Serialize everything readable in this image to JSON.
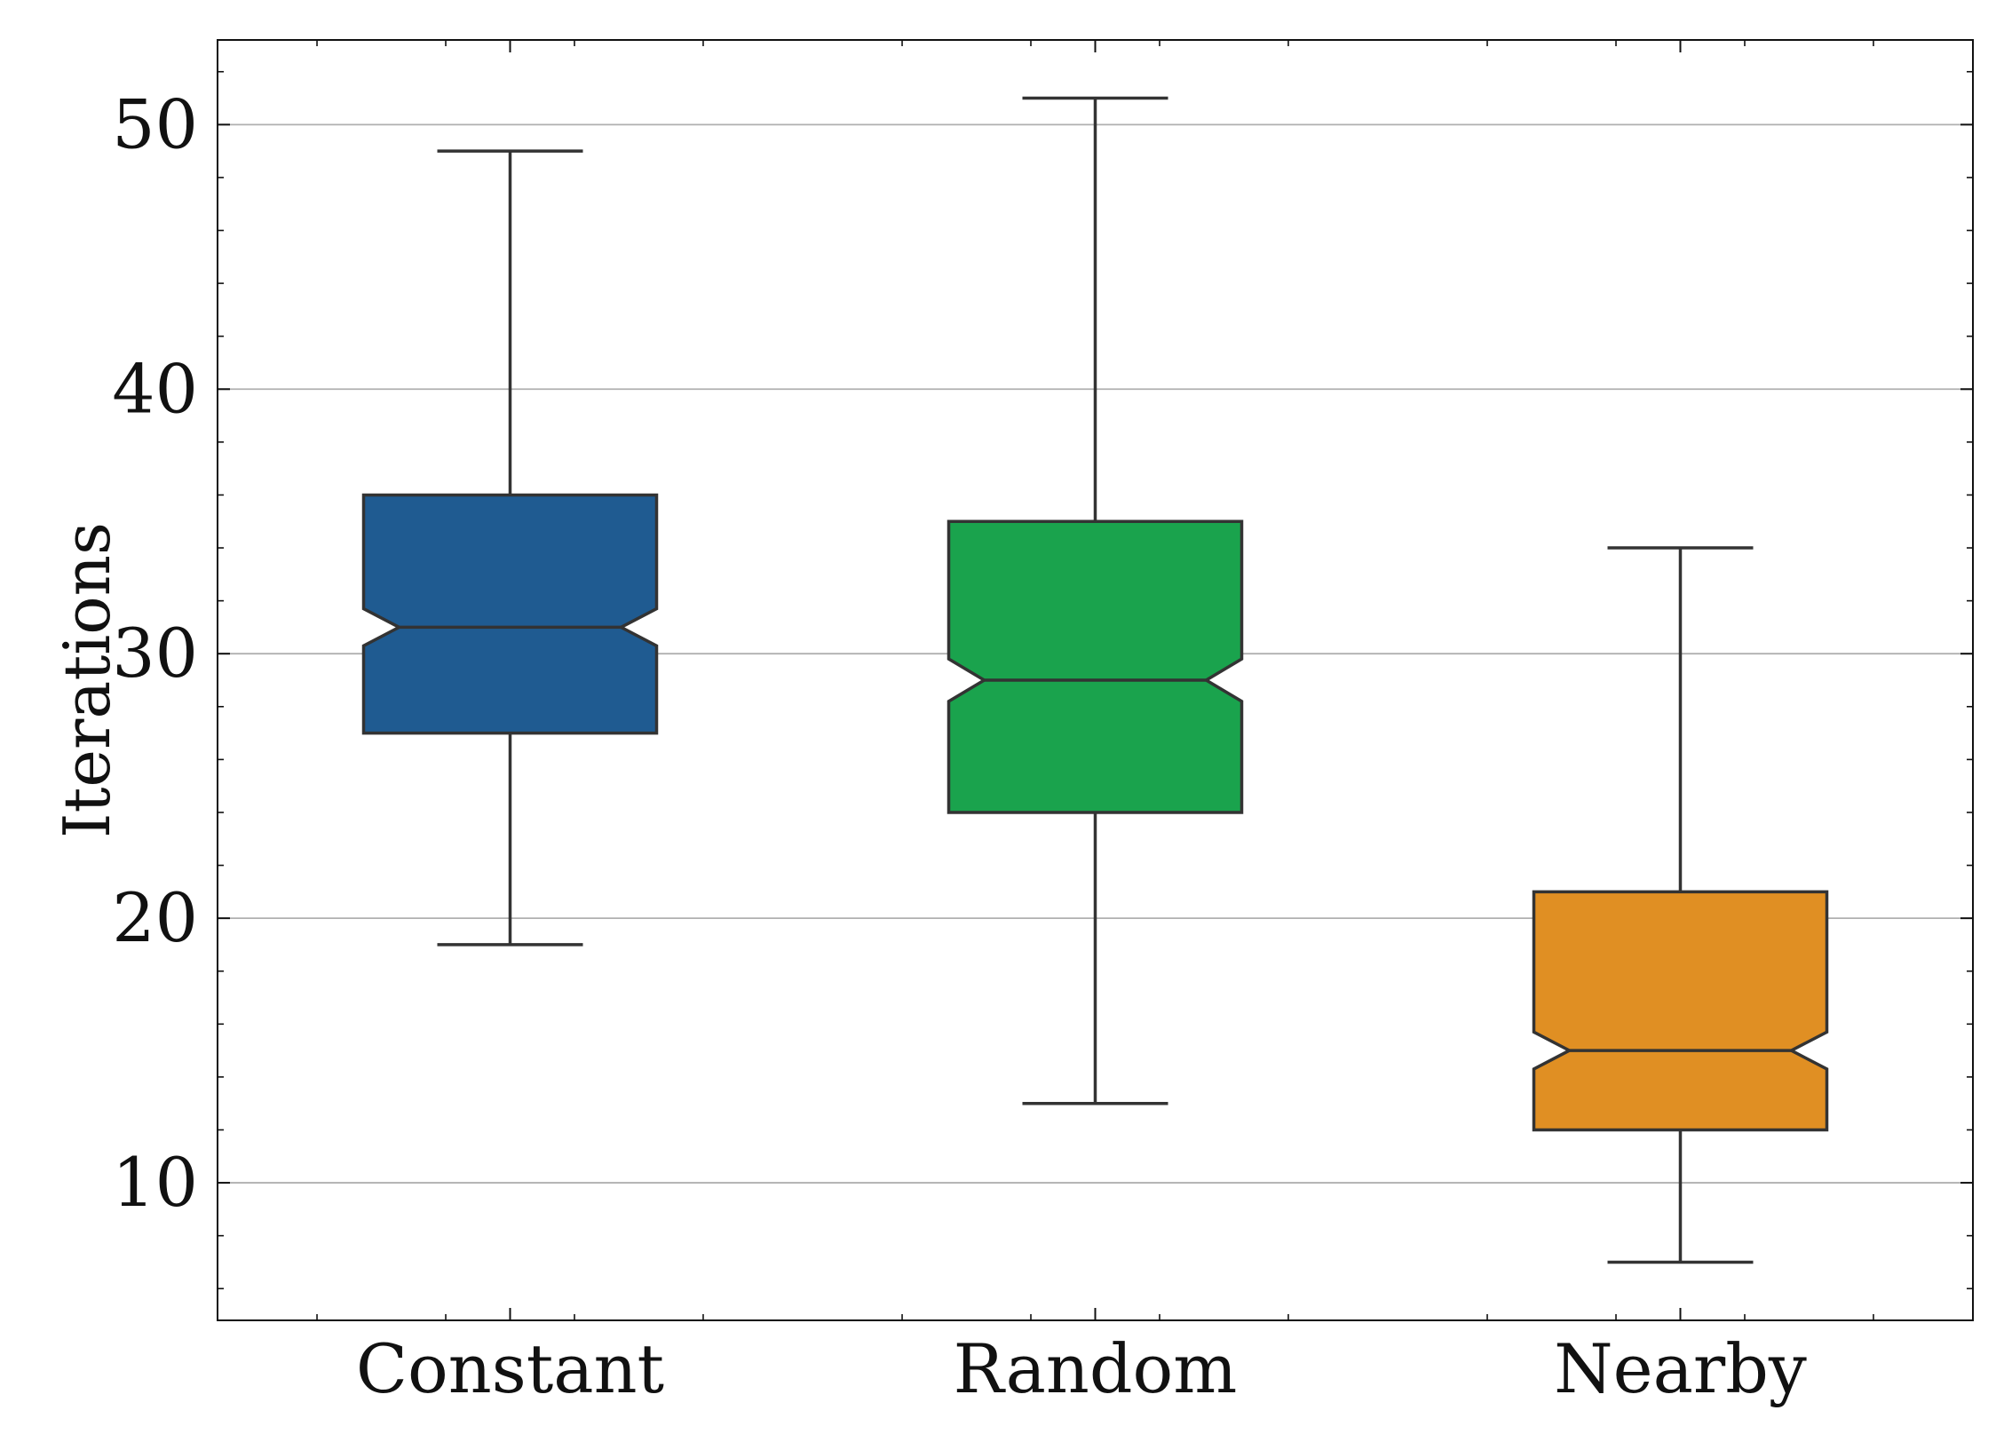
{
  "chart_data": {
    "type": "box",
    "title": "",
    "xlabel": "",
    "ylabel": "Iterations",
    "categories": [
      "Constant",
      "Random",
      "Nearby"
    ],
    "boxes": [
      {
        "category": "Constant",
        "whisker_low": 19,
        "q1": 27,
        "median": 31,
        "q3": 36,
        "whisker_high": 49,
        "notch_low": 30.3,
        "notch_high": 31.7,
        "color": "#1f5b91"
      },
      {
        "category": "Random",
        "whisker_low": 13,
        "q1": 24,
        "median": 29,
        "q3": 35,
        "whisker_high": 51,
        "notch_low": 28.2,
        "notch_high": 29.8,
        "color": "#1aa34d"
      },
      {
        "category": "Nearby",
        "whisker_low": 7,
        "q1": 12,
        "median": 15,
        "q3": 21,
        "whisker_high": 34,
        "notch_low": 14.3,
        "notch_high": 15.7,
        "color": "#e08f23"
      }
    ],
    "ylim": [
      4.8,
      53.2
    ],
    "yticks": [
      10,
      20,
      30,
      40,
      50
    ],
    "grid": "horizontal",
    "notched": true
  }
}
